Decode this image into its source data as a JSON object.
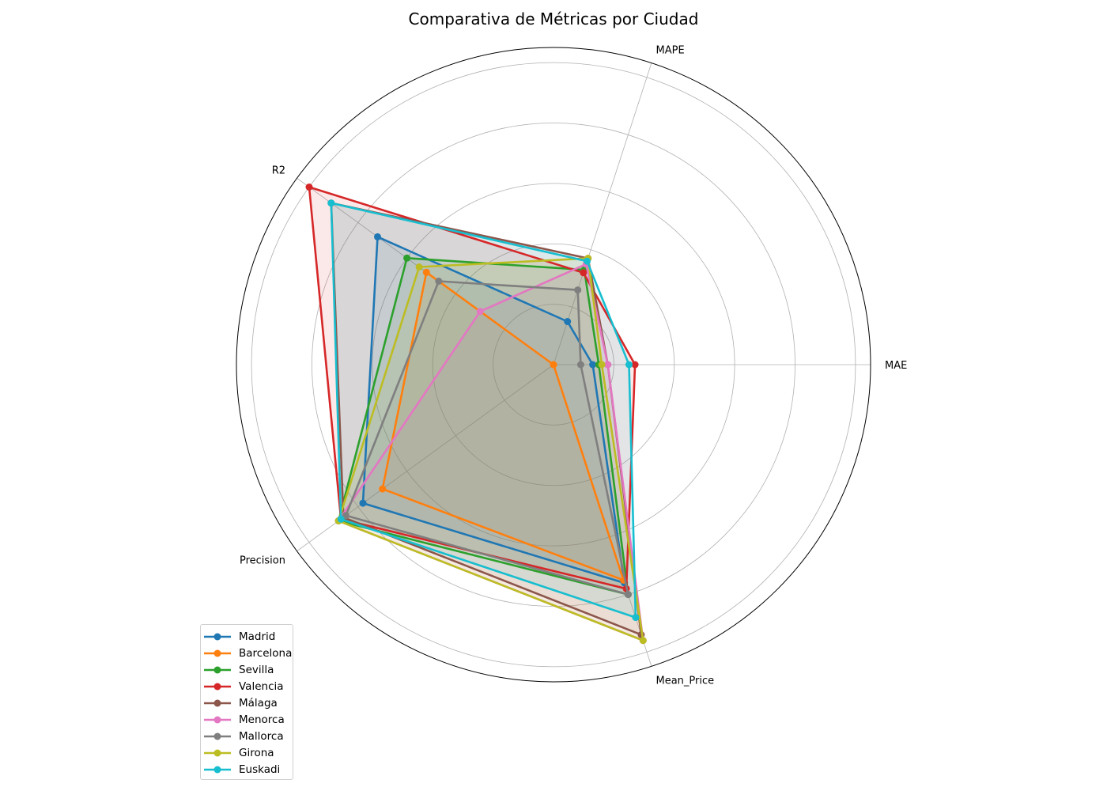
{
  "chart_data": {
    "type": "radar",
    "title": "Comparativa de Métricas por Ciudad",
    "axes": [
      "MAE",
      "MAPE",
      "R2",
      "Precision",
      "Mean_Price"
    ],
    "rlim": [
      0,
      1.05
    ],
    "grid": true,
    "legend_position": "bottom-left",
    "series": [
      {
        "name": "Madrid",
        "color": "#1f77b4",
        "values": [
          0.13,
          0.15,
          0.72,
          0.78,
          0.76
        ]
      },
      {
        "name": "Barcelona",
        "color": "#ff7f0e",
        "values": [
          0.0,
          0.0,
          0.52,
          0.7,
          0.75
        ]
      },
      {
        "name": "Sevilla",
        "color": "#2ca02c",
        "values": [
          0.15,
          0.33,
          0.6,
          0.88,
          0.8
        ]
      },
      {
        "name": "Valencia",
        "color": "#d62728",
        "values": [
          0.27,
          0.32,
          1.0,
          0.87,
          0.78
        ]
      },
      {
        "name": "Málaga",
        "color": "#8c564b",
        "values": [
          0.18,
          0.37,
          0.91,
          0.86,
          0.94
        ]
      },
      {
        "name": "Menorca",
        "color": "#e377c2",
        "values": [
          0.18,
          0.35,
          0.3,
          0.88,
          0.96
        ]
      },
      {
        "name": "Mallorca",
        "color": "#7f7f7f",
        "values": [
          0.09,
          0.26,
          0.47,
          0.85,
          0.8
        ]
      },
      {
        "name": "Girona",
        "color": "#bcbd22",
        "values": [
          0.16,
          0.37,
          0.55,
          0.88,
          0.96
        ]
      },
      {
        "name": "Euskadi",
        "color": "#17becf",
        "values": [
          0.25,
          0.36,
          0.91,
          0.87,
          0.88
        ]
      }
    ]
  }
}
